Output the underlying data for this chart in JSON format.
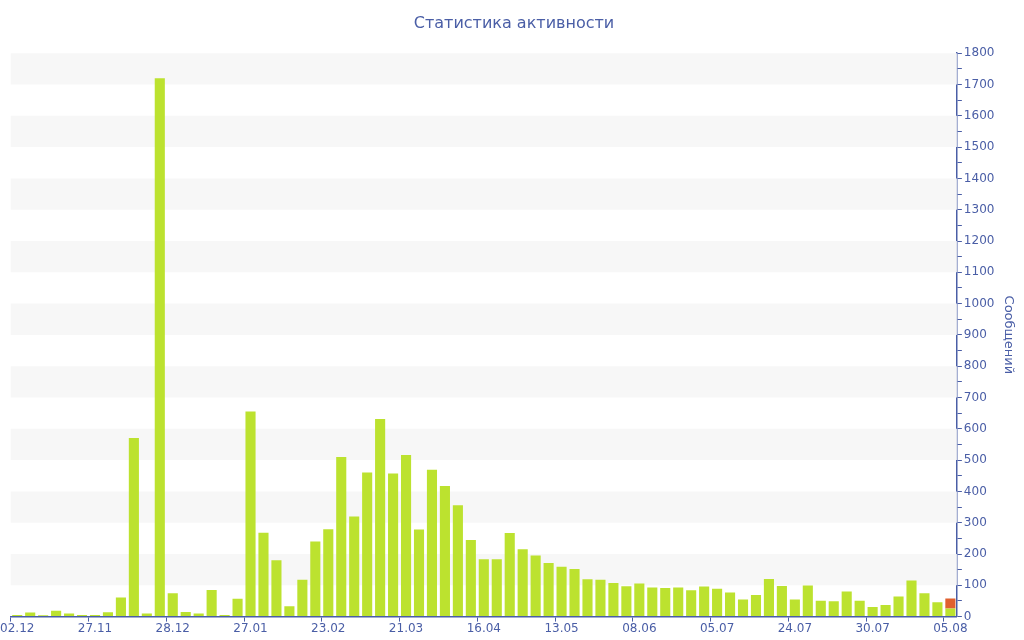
{
  "chart_data": {
    "type": "bar",
    "title": "Статистика активности",
    "ylabel": "Сообщений",
    "stacked": true,
    "bands": [
      {
        "axis": "y",
        "from": 100,
        "to": 200,
        "color": "#f7f7f7"
      },
      {
        "axis": "y",
        "from": 300,
        "to": 400,
        "color": "#f7f7f7"
      },
      {
        "axis": "y",
        "from": 500,
        "to": 600,
        "color": "#f7f7f7"
      },
      {
        "axis": "y",
        "from": 700,
        "to": 800,
        "color": "#f7f7f7"
      },
      {
        "axis": "y",
        "from": 900,
        "to": 1000,
        "color": "#f7f7f7"
      },
      {
        "axis": "y",
        "from": 1100,
        "to": 1200,
        "color": "#f7f7f7"
      },
      {
        "axis": "y",
        "from": 1300,
        "to": 1400,
        "color": "#f7f7f7"
      },
      {
        "axis": "y",
        "from": 1500,
        "to": 1600,
        "color": "#f7f7f7"
      },
      {
        "axis": "y",
        "from": 1700,
        "to": 1800,
        "color": "#f7f7f7"
      }
    ],
    "categories": [
      "02.12",
      null,
      null,
      null,
      null,
      null,
      "27.11",
      null,
      null,
      null,
      null,
      null,
      "28.12",
      null,
      null,
      null,
      null,
      null,
      "27.01",
      null,
      null,
      null,
      null,
      null,
      "23.02",
      null,
      null,
      null,
      null,
      null,
      "21.03",
      null,
      null,
      null,
      null,
      null,
      "16.04",
      null,
      null,
      null,
      null,
      null,
      "13.05",
      null,
      null,
      null,
      null,
      null,
      "08.06",
      null,
      null,
      null,
      null,
      null,
      "05.07",
      null,
      null,
      null,
      null,
      null,
      "24.07",
      null,
      null,
      null,
      null,
      null,
      "30.07",
      null,
      null,
      null,
      null,
      null,
      "05.08"
    ],
    "series": [
      {
        "color": "#bce22f",
        "values": [
          5,
          13,
          4,
          19,
          10,
          5,
          5,
          14,
          61,
          571,
          10,
          1720,
          75,
          15,
          10,
          85,
          5,
          57,
          655,
          268,
          180,
          33,
          118,
          240,
          279,
          510,
          320,
          460,
          631,
          457,
          516,
          278,
          469,
          417,
          356,
          245,
          183,
          183,
          267,
          215,
          195,
          171,
          159,
          152,
          119,
          118,
          107,
          97,
          106,
          93,
          91,
          93,
          84,
          96,
          89,
          77,
          55,
          69,
          120,
          98,
          55,
          99,
          51,
          49,
          80,
          51,
          31,
          37,
          64,
          115,
          75,
          46,
          26
        ]
      },
      {
        "color": "#e0602f",
        "values": [
          null,
          null,
          null,
          null,
          null,
          null,
          null,
          null,
          null,
          null,
          null,
          null,
          null,
          null,
          null,
          null,
          null,
          null,
          null,
          null,
          null,
          null,
          null,
          null,
          null,
          null,
          null,
          null,
          null,
          null,
          null,
          null,
          null,
          null,
          null,
          null,
          null,
          null,
          null,
          null,
          null,
          null,
          null,
          null,
          null,
          null,
          null,
          null,
          null,
          null,
          null,
          null,
          null,
          null,
          null,
          null,
          null,
          null,
          null,
          null,
          null,
          null,
          null,
          null,
          null,
          null,
          null,
          null,
          null,
          null,
          null,
          null,
          32
        ]
      }
    ],
    "ylim": [
      0,
      1800
    ],
    "yticks": [
      0,
      {
        "value": 50,
        "label": null
      },
      100,
      {
        "value": 150,
        "label": null
      },
      200,
      {
        "value": 250,
        "label": null
      },
      300,
      {
        "value": 350,
        "label": null
      },
      400,
      {
        "value": 450,
        "label": null
      },
      500,
      {
        "value": 550,
        "label": null
      },
      600,
      {
        "value": 650,
        "label": null
      },
      700,
      {
        "value": 750,
        "label": null
      },
      800,
      {
        "value": 850,
        "label": null
      },
      900,
      {
        "value": 950,
        "label": null
      },
      1000,
      {
        "value": 1050,
        "label": null
      },
      1100,
      {
        "value": 1150,
        "label": null
      },
      1200,
      {
        "value": 1250,
        "label": null
      },
      1300,
      {
        "value": 1350,
        "label": null
      },
      1400,
      {
        "value": 1450,
        "label": null
      },
      1500,
      {
        "value": 1550,
        "label": null
      },
      1600,
      {
        "value": 1650,
        "label": null
      },
      1700,
      {
        "value": 1750,
        "label": null
      },
      1800
    ]
  }
}
